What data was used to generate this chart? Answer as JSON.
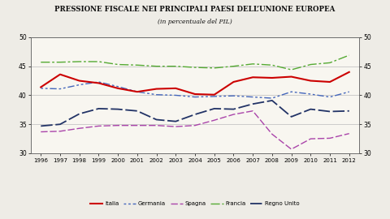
{
  "title": "PRESSIONE FISCALE NEI PRINCIPALI PAESI DELL’UNIONE EUROPEA",
  "subtitle": "(in percentuale del PIL)",
  "years": [
    1996,
    1997,
    1998,
    1999,
    2000,
    2001,
    2002,
    2003,
    2004,
    2005,
    2006,
    2007,
    2008,
    2009,
    2010,
    2011,
    2012
  ],
  "italia": [
    41.4,
    43.6,
    42.5,
    42.1,
    41.2,
    40.6,
    41.1,
    41.2,
    40.2,
    40.1,
    42.3,
    43.1,
    43.0,
    43.2,
    42.5,
    42.3,
    44.0
  ],
  "germania": [
    41.2,
    41.1,
    41.8,
    42.3,
    41.5,
    40.6,
    40.1,
    40.0,
    39.7,
    39.8,
    39.9,
    39.7,
    39.5,
    40.6,
    40.2,
    39.7,
    40.6
  ],
  "spagna": [
    33.7,
    33.8,
    34.3,
    34.7,
    34.8,
    34.8,
    34.8,
    34.6,
    34.8,
    35.7,
    36.7,
    37.3,
    33.3,
    30.7,
    32.5,
    32.6,
    33.4
  ],
  "francia": [
    45.7,
    45.7,
    45.8,
    45.8,
    45.3,
    45.2,
    45.0,
    45.0,
    44.8,
    44.7,
    45.0,
    45.4,
    45.2,
    44.4,
    45.3,
    45.6,
    46.9
  ],
  "regno_unito": [
    34.7,
    35.0,
    36.8,
    37.7,
    37.6,
    37.3,
    35.8,
    35.5,
    36.7,
    37.7,
    37.6,
    38.5,
    39.1,
    36.3,
    37.6,
    37.2,
    37.3
  ],
  "ylim": [
    30,
    50
  ],
  "yticks": [
    30,
    35,
    40,
    45,
    50
  ],
  "color_italia": "#cc0000",
  "color_germania": "#4466bb",
  "color_spagna": "#aa44aa",
  "color_francia": "#55aa33",
  "color_regno_unito": "#223366",
  "bg_color": "#eeece6",
  "plot_bg": "#f8f6f0",
  "grid_color": "#bbbbbb"
}
